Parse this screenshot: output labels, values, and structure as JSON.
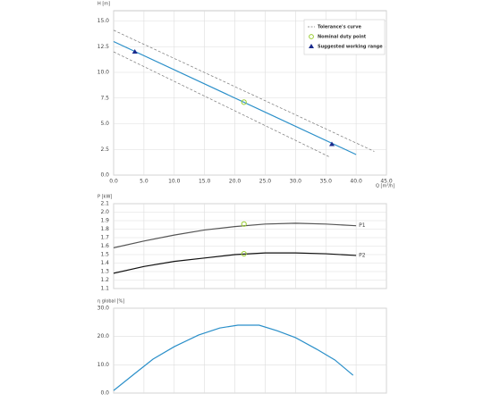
{
  "chart_data": [
    {
      "type": "line",
      "y_label": "H [m]",
      "x_label": "Q [m³/h]",
      "xlim": [
        0,
        45
      ],
      "xticks": [
        {
          "value": 0,
          "label": "0.0"
        },
        {
          "value": 5,
          "label": "5.0"
        },
        {
          "value": 10,
          "label": "10.0"
        },
        {
          "value": 15,
          "label": "15.0"
        },
        {
          "value": 20,
          "label": "20.0"
        },
        {
          "value": 25,
          "label": "25.0"
        },
        {
          "value": 30,
          "label": "30.0"
        },
        {
          "value": 35,
          "label": "35.0"
        },
        {
          "value": 40,
          "label": "40.0"
        },
        {
          "value": 45,
          "label": "45.0"
        }
      ],
      "ylim": [
        0,
        16
      ],
      "yticks": [
        {
          "value": 0,
          "label": "0.0"
        },
        2.5,
        {
          "value": 5,
          "label": "5.0"
        },
        7.5,
        {
          "value": 10,
          "label": "10.0"
        },
        12.5,
        {
          "value": 15,
          "label": "15.0"
        }
      ],
      "grid": true,
      "legend": "upper right",
      "series": [
        {
          "name": "Tolerance's curve",
          "style": "dashed",
          "color": "#777777",
          "x": [
            0,
            43
          ],
          "values": [
            14.1,
            2.3
          ]
        },
        {
          "style": "dashed",
          "color": "#777777",
          "x": [
            0,
            35.5
          ],
          "values": [
            12,
            1.8
          ]
        },
        {
          "style": "solid",
          "color": "#2a8fc9",
          "x": [
            0,
            40
          ],
          "values": [
            13,
            2
          ]
        },
        {
          "name": "Nominal duty point",
          "style": "circle",
          "color": "#9acd32",
          "x": [
            21.5
          ],
          "values": [
            7.1
          ]
        },
        {
          "name": "Suggested working range",
          "style": "triangle",
          "color": "#1a2a8c",
          "x": [
            3.5,
            36
          ],
          "values": [
            12,
            3
          ]
        }
      ]
    },
    {
      "type": "line",
      "y_label": "P [kW]",
      "xlim": [
        0,
        45
      ],
      "xticks": [
        0,
        5,
        10,
        15,
        20,
        25,
        30,
        35,
        40,
        45
      ],
      "ylim": [
        1.1,
        2.1
      ],
      "yticks": [
        1.1,
        1.2,
        1.3,
        1.4,
        1.5,
        1.6,
        1.7,
        1.8,
        1.9,
        {
          "value": 2,
          "label": "2.0"
        },
        2.1
      ],
      "grid": true,
      "series": [
        {
          "name": "P1",
          "style": "solid",
          "color": "#555555",
          "end_label": true,
          "x": [
            0,
            5,
            10,
            15,
            20,
            25,
            30,
            35,
            40
          ],
          "values": [
            1.58,
            1.66,
            1.73,
            1.79,
            1.83,
            1.86,
            1.87,
            1.86,
            1.84
          ]
        },
        {
          "name": "P2",
          "style": "solid",
          "color": "#111111",
          "end_label": true,
          "x": [
            0,
            5,
            10,
            15,
            20,
            25,
            30,
            35,
            40
          ],
          "values": [
            1.28,
            1.36,
            1.42,
            1.46,
            1.5,
            1.52,
            1.52,
            1.51,
            1.49
          ]
        },
        {
          "style": "circle",
          "color": "#9acd32",
          "x": [
            21.5,
            21.5
          ],
          "values": [
            1.86,
            1.51
          ]
        }
      ]
    },
    {
      "type": "line",
      "y_label": "η global [%]",
      "xlim": [
        0,
        45
      ],
      "xticks": [
        0,
        5,
        10,
        15,
        20,
        25,
        30,
        35,
        40,
        45
      ],
      "ylim": [
        0,
        30
      ],
      "yticks": [
        {
          "value": 0,
          "label": "0.0"
        },
        {
          "value": 10,
          "label": "10.0"
        },
        {
          "value": 20,
          "label": "20.0"
        },
        {
          "value": 30,
          "label": "30.0"
        }
      ],
      "grid": true,
      "series": [
        {
          "style": "solid",
          "color": "#2a8fc9",
          "x": [
            0,
            3.5,
            6.5,
            10,
            14,
            17.5,
            20.5,
            24,
            27,
            30,
            33.5,
            36.5,
            39.5
          ],
          "values": [
            0.9,
            6.9,
            12,
            16.4,
            20.5,
            23,
            24,
            24,
            22,
            19.6,
            15.5,
            11.7,
            6.3
          ]
        }
      ]
    }
  ]
}
